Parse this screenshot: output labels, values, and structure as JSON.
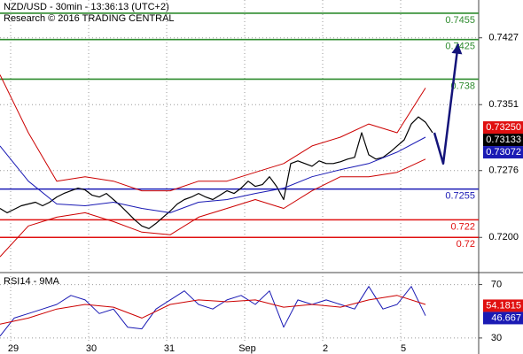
{
  "chart_data": {
    "type": "line",
    "title": "NZD/USD - 30min - 13:36:13 (UTC+2)",
    "subtitle": "Research © 2016 TRADING CENTRAL",
    "xlim": [
      0,
      67.5
    ],
    "xticks": [
      {
        "value": 1.5,
        "label": "29"
      },
      {
        "value": 12.5,
        "label": "30"
      },
      {
        "value": 23.5,
        "label": "31"
      },
      {
        "value": 34.5,
        "label": "Sep"
      },
      {
        "value": 45.5,
        "label": "2"
      },
      {
        "value": 56.5,
        "label": "5"
      }
    ],
    "ylim": [
      0.716,
      0.747
    ],
    "yticks": [
      0.7427,
      0.7351,
      0.7276,
      {
        "value": 0.72,
        "label": "0.7200"
      }
    ],
    "grid": true,
    "levels": [
      {
        "value": 0.7455,
        "color": "#2e8b2e"
      },
      {
        "value": 0.7425,
        "color": "#2e8b2e"
      },
      {
        "value": 0.738,
        "color": "#2e8b2e"
      },
      {
        "value": 0.7255,
        "color": "#1a1ab4"
      },
      {
        "value": 0.722,
        "color": "#e01010"
      },
      {
        "value": 0.72,
        "color": "#e01010"
      }
    ],
    "price_tags": [
      {
        "value": 0.7325,
        "label": "0.73250",
        "color": "#e01010"
      },
      {
        "value": 0.73133,
        "label": "0.73133",
        "color": "#000000"
      },
      {
        "value": 0.73072,
        "label": "0.73072",
        "color": "#1a1ab4"
      }
    ],
    "series": [
      {
        "color": "#000000",
        "width": 1.2,
        "x": [
          0,
          1,
          2,
          3,
          4,
          5,
          6,
          7,
          8,
          9,
          10,
          11,
          12,
          13,
          14,
          15,
          16,
          17,
          18,
          19,
          20,
          21,
          22,
          23,
          24,
          25,
          26,
          27,
          28,
          29,
          30,
          31,
          32,
          33,
          34,
          35,
          36,
          37,
          38,
          39,
          40,
          41,
          42,
          43,
          44,
          45,
          46,
          47,
          48,
          49,
          50,
          51,
          52,
          53,
          54,
          55,
          56,
          57,
          58,
          59,
          60,
          61
        ],
        "values": [
          0.7233,
          0.7228,
          0.7232,
          0.7236,
          0.7238,
          0.724,
          0.7236,
          0.724,
          0.7246,
          0.725,
          0.7253,
          0.7256,
          0.7254,
          0.7248,
          0.7246,
          0.725,
          0.7243,
          0.7236,
          0.7228,
          0.722,
          0.7213,
          0.721,
          0.7216,
          0.7223,
          0.723,
          0.7238,
          0.7243,
          0.7246,
          0.725,
          0.7246,
          0.7243,
          0.7248,
          0.7253,
          0.725,
          0.7256,
          0.7264,
          0.7258,
          0.726,
          0.7269,
          0.7258,
          0.7243,
          0.7284,
          0.7287,
          0.7284,
          0.7281,
          0.7287,
          0.7284,
          0.7284,
          0.7286,
          0.7289,
          0.7291,
          0.7319,
          0.7294,
          0.7289,
          0.7291,
          0.7297,
          0.7304,
          0.7311,
          0.7329,
          0.7337,
          0.7331,
          0.7319
        ]
      },
      {
        "color": "#cc0000",
        "width": 1,
        "x": [
          0,
          4,
          8,
          12,
          16,
          20,
          24,
          28,
          32,
          36,
          40,
          44,
          48,
          52,
          56,
          60
        ],
        "values": [
          0.7385,
          0.7319,
          0.7264,
          0.7269,
          0.7264,
          0.7253,
          0.7253,
          0.7264,
          0.7264,
          0.7274,
          0.7284,
          0.7304,
          0.7314,
          0.7329,
          0.7319,
          0.737
        ]
      },
      {
        "color": "#cc0000",
        "width": 1,
        "x": [
          0,
          4,
          8,
          12,
          16,
          20,
          24,
          28,
          32,
          36,
          40,
          44,
          48,
          52,
          56,
          60
        ],
        "values": [
          0.7178,
          0.7213,
          0.7223,
          0.7228,
          0.7218,
          0.7206,
          0.7203,
          0.7223,
          0.7233,
          0.7243,
          0.7233,
          0.7253,
          0.7269,
          0.7269,
          0.7274,
          0.7289
        ]
      },
      {
        "color": "#1a1ab4",
        "width": 1,
        "x": [
          0,
          4,
          8,
          12,
          16,
          20,
          24,
          28,
          32,
          36,
          40,
          44,
          48,
          52,
          56,
          60
        ],
        "values": [
          0.7304,
          0.7264,
          0.7238,
          0.7236,
          0.724,
          0.7233,
          0.7228,
          0.724,
          0.7243,
          0.725,
          0.7256,
          0.7269,
          0.7277,
          0.7284,
          0.7297,
          0.7314
        ]
      },
      {
        "color": "#14147a",
        "width": 2.5,
        "arrow": true,
        "x": [
          61.25,
          62.5,
          64.6
        ],
        "values": [
          0.7319,
          0.7284,
          0.742
        ]
      }
    ],
    "rsi": {
      "title": "RSI14 - 9MA",
      "ylim": [
        18,
        79
      ],
      "yticks": [
        70,
        30
      ],
      "series": [
        {
          "color": "#1a1ab4",
          "width": 1,
          "x": [
            0,
            2,
            4,
            6,
            8,
            10,
            12,
            14,
            16,
            18,
            20,
            22,
            24,
            26,
            28,
            30,
            32,
            34,
            36,
            38,
            40,
            42,
            44,
            46,
            48,
            50,
            52,
            54,
            56,
            58,
            60
          ],
          "values": [
            31.4,
            44.9,
            48.3,
            51.7,
            55.1,
            61.9,
            58.5,
            48.3,
            51.7,
            38.1,
            36.8,
            51.7,
            58.5,
            65.3,
            55.1,
            51.7,
            58.5,
            61.9,
            55.1,
            65.3,
            38.1,
            58.5,
            55.1,
            58.5,
            55.1,
            51.7,
            68.6,
            51.7,
            55.1,
            68.6,
            46.7
          ]
        },
        {
          "color": "#cc0000",
          "width": 1,
          "x": [
            0,
            4,
            8,
            12,
            16,
            20,
            24,
            28,
            32,
            36,
            40,
            44,
            48,
            52,
            56,
            60
          ],
          "values": [
            40.4,
            44.9,
            51.7,
            55.1,
            53.1,
            44.9,
            55.1,
            58.5,
            57.1,
            58.5,
            53.1,
            55.1,
            53.1,
            58.5,
            61.9,
            55.1
          ]
        }
      ],
      "tags": [
        {
          "value": 54.1815,
          "color": "#e01010"
        },
        {
          "value": 46.667,
          "color": "#1a1ab4"
        }
      ]
    }
  }
}
